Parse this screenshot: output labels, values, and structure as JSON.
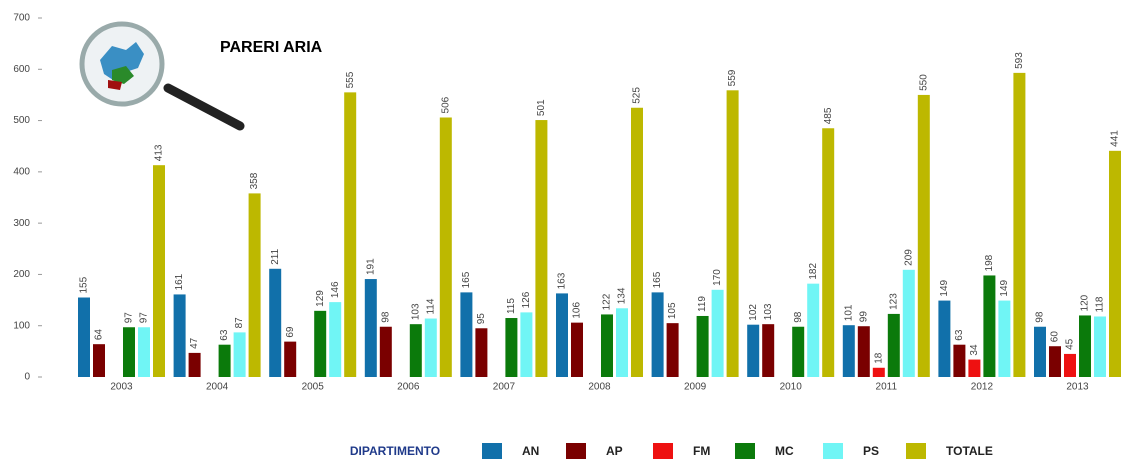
{
  "chart_data": {
    "type": "bar",
    "title": "PARERI ARIA",
    "legend_title": "DIPARTIMENTO",
    "categories": [
      "2003",
      "2004",
      "2005",
      "2006",
      "2007",
      "2008",
      "2009",
      "2010",
      "2011",
      "2012",
      "2013"
    ],
    "series": [
      {
        "name": "AN",
        "color": "#1170aa",
        "values": [
          155,
          161,
          211,
          191,
          165,
          163,
          165,
          102,
          101,
          149,
          98
        ]
      },
      {
        "name": "AP",
        "color": "#7a0000",
        "values": [
          64,
          47,
          69,
          98,
          95,
          106,
          105,
          103,
          99,
          63,
          60
        ]
      },
      {
        "name": "FM",
        "color": "#ee1111",
        "values": [
          null,
          null,
          null,
          null,
          null,
          null,
          null,
          null,
          18,
          34,
          45
        ]
      },
      {
        "name": "MC",
        "color": "#0b7a0b",
        "values": [
          97,
          63,
          129,
          103,
          115,
          122,
          119,
          98,
          123,
          198,
          120
        ]
      },
      {
        "name": "PS",
        "color": "#70f5f5",
        "values": [
          97,
          87,
          146,
          114,
          126,
          134,
          170,
          182,
          209,
          149,
          118
        ]
      },
      {
        "name": "TOTALE",
        "color": "#bdb800",
        "values": [
          413,
          358,
          555,
          506,
          501,
          525,
          559,
          485,
          550,
          593,
          441
        ]
      }
    ],
    "ylim": [
      0,
      700
    ],
    "yticks": [
      0,
      100,
      200,
      300,
      400,
      500,
      600,
      700
    ],
    "legend": "bottom"
  }
}
